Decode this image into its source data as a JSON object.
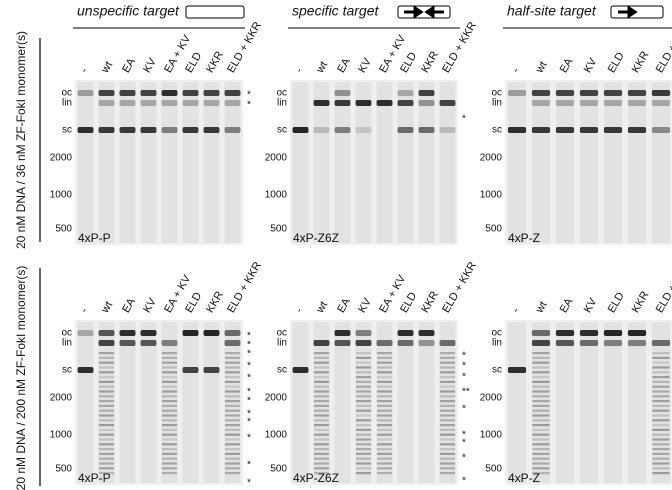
{
  "columns": [
    {
      "title": "unspecific target"
    },
    {
      "title": "specific target"
    },
    {
      "title": "half-site target"
    }
  ],
  "rows": [
    {
      "label": "20 nM DNA / 36 nM ZF-FokI monomer(s)"
    },
    {
      "label": "20 nM DNA / 200 nM ZF-FokI monomer(s)"
    }
  ],
  "panels": [
    {
      "name": "4xP-P",
      "lanes": [
        "-",
        "wt",
        "EA",
        "KV",
        "EA + KV",
        "ELD",
        "KKR",
        "ELD + KKR"
      ],
      "markers": [
        "oc",
        "lin",
        "sc",
        "2000",
        "1000",
        "500"
      ],
      "stars": [
        "*",
        "*"
      ]
    },
    {
      "name": "4xP-Z6Z",
      "lanes": [
        "-",
        "wt",
        "EA",
        "KV",
        "EA + KV",
        "ELD",
        "KKR",
        "ELD + KKR"
      ],
      "markers": [
        "oc",
        "lin",
        "sc",
        "2000",
        "1000",
        "500"
      ],
      "stars": [
        "*"
      ]
    },
    {
      "name": "4xP-Z",
      "lanes": [
        "-",
        "wt",
        "EA",
        "KV",
        "ELD",
        "KKR",
        "ELD + KKR"
      ],
      "markers": [
        "oc",
        "lin",
        "sc",
        "2000",
        "1000",
        "500"
      ],
      "stars": [
        "*",
        "*"
      ]
    },
    {
      "name": "4xP-P",
      "lanes": [
        "-",
        "wt",
        "EA",
        "KV",
        "EA + KV",
        "ELD",
        "KKR",
        "ELD + KKR"
      ],
      "markers": [
        "oc",
        "lin",
        "sc",
        "2000",
        "1000",
        "500"
      ],
      "stars": [
        "*",
        "*",
        "*",
        "*",
        "*",
        "*",
        "*",
        "*",
        "*",
        "*",
        "*",
        "*"
      ]
    },
    {
      "name": "4xP-Z6Z",
      "lanes": [
        "-",
        "wt",
        "EA",
        "KV",
        "EA + KV",
        "ELD",
        "KKR",
        "ELD + KKR"
      ],
      "markers": [
        "oc",
        "lin",
        "sc",
        "2000",
        "1000",
        "500"
      ],
      "stars": [
        "*",
        "*",
        "*",
        "**",
        "*",
        "*",
        "*",
        "*",
        "*"
      ]
    },
    {
      "name": "4xP-Z",
      "lanes": [
        "-",
        "wt",
        "EA",
        "KV",
        "ELD",
        "KKR",
        "ELD + KKR"
      ],
      "markers": [
        "oc",
        "lin",
        "sc",
        "2000",
        "1000",
        "500"
      ],
      "stars": [
        "*",
        "*",
        "**",
        "*",
        "**",
        "**",
        "**",
        "*",
        "*",
        "*"
      ]
    }
  ]
}
